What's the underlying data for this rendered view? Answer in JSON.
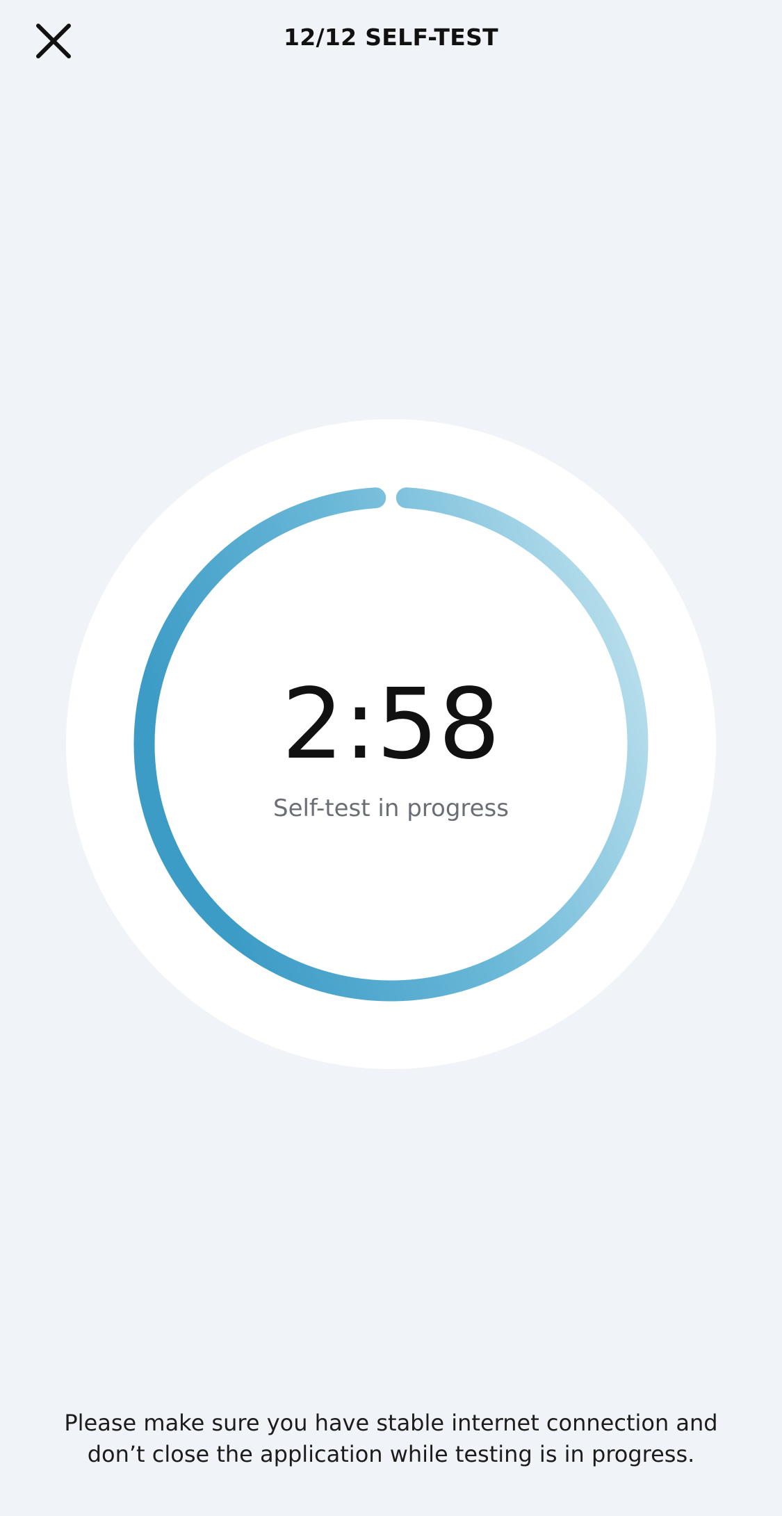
{
  "header": {
    "title": "12/12 SELF-TEST",
    "close_icon": "close-icon"
  },
  "progress": {
    "timer": "2:58",
    "status": "Self-test in progress",
    "elapsed_fraction": 0.98,
    "colors": {
      "ring_start": "#3d9cc6",
      "ring_mid": "#6bb8d8",
      "ring_end": "#c8e6f0"
    }
  },
  "footer": {
    "notice": "Please make sure you have stable internet connection and don’t close the application while testing is in progress."
  },
  "theme": {
    "background": "#f0f4f8",
    "circle": "#ffffff"
  }
}
